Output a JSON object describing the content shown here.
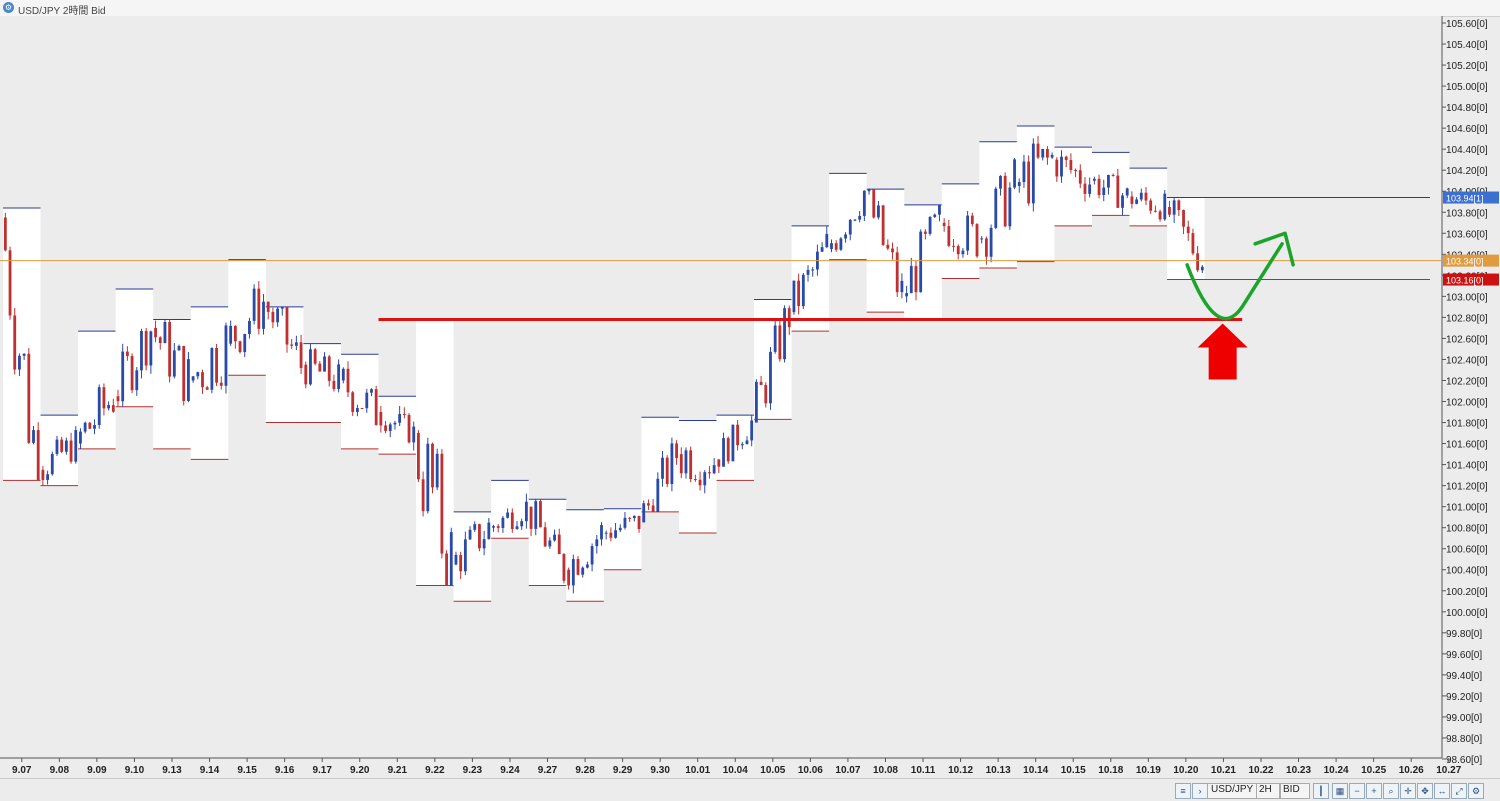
{
  "window": {
    "title": "USD/JPY 2時間 Bid"
  },
  "colors": {
    "bg": "#ececec",
    "up": "#2a4aa8",
    "down": "#c03030",
    "box_top": "#2a3a9a",
    "box_bottom": "#b03030",
    "support": "#dd1111",
    "arrow": "#1aa52a",
    "orange_line": "#e09a40"
  },
  "price_scale": {
    "labels": [
      "105.60[0]",
      "105.40[0]",
      "105.20[0]",
      "105.00[0]",
      "104.80[0]",
      "104.60[0]",
      "104.40[0]",
      "104.20[0]",
      "104.00[0]",
      "103.80[0]",
      "103.60[0]",
      "103.40[0]",
      "103.20[0]",
      "103.00[0]",
      "102.80[0]",
      "102.60[0]",
      "102.40[0]",
      "102.20[0]",
      "102.00[0]",
      "101.80[0]",
      "101.60[0]",
      "101.40[0]",
      "101.20[0]",
      "101.00[0]",
      "100.80[0]",
      "100.60[0]",
      "100.40[0]",
      "100.20[0]",
      "100.00[0]",
      "99.80[0]",
      "99.60[0]",
      "99.40[0]",
      "99.20[0]",
      "99.00[0]",
      "98.80[0]",
      "98.60[0]"
    ],
    "markers": [
      {
        "label": "103.94[1]",
        "price": 103.94,
        "color": "#3b6fd0"
      },
      {
        "label": "103.34[0]",
        "price": 103.34,
        "color": "#e09a40"
      },
      {
        "label": "103.16[0]",
        "price": 103.16,
        "color": "#cc1111"
      }
    ]
  },
  "chart_data": {
    "type": "candlestick",
    "title": "USD/JPY 2時間 Bid",
    "x_labels": [
      "9.07",
      "9.08",
      "9.09",
      "9.10",
      "9.13",
      "9.14",
      "9.15",
      "9.16",
      "9.17",
      "9.20",
      "9.21",
      "9.22",
      "9.23",
      "9.24",
      "9.27",
      "9.28",
      "9.29",
      "9.30",
      "10.01",
      "10.04",
      "10.05",
      "10.06",
      "10.07",
      "10.08",
      "10.11",
      "10.12",
      "10.13",
      "10.14",
      "10.15",
      "10.18",
      "10.19",
      "10.20",
      "10.21",
      "10.22",
      "10.23",
      "10.24",
      "10.25",
      "10.26",
      "10.27"
    ],
    "ylim": [
      98.6,
      105.6
    ],
    "grid": false,
    "daily_ranges": [
      {
        "date": "9.07",
        "open": 103.75,
        "high": 103.84,
        "low": 101.25,
        "close": 101.35
      },
      {
        "date": "9.08",
        "open": 101.35,
        "high": 101.87,
        "low": 101.2,
        "close": 101.6
      },
      {
        "date": "9.09",
        "open": 101.6,
        "high": 102.67,
        "low": 101.55,
        "close": 102.05
      },
      {
        "date": "9.10",
        "open": 102.05,
        "high": 103.07,
        "low": 101.95,
        "close": 102.7
      },
      {
        "date": "9.13",
        "open": 102.7,
        "high": 102.78,
        "low": 101.55,
        "close": 102.2
      },
      {
        "date": "9.14",
        "open": 102.2,
        "high": 102.9,
        "low": 101.45,
        "close": 102.55
      },
      {
        "date": "9.15",
        "open": 102.55,
        "high": 103.35,
        "low": 102.25,
        "close": 102.95
      },
      {
        "date": "9.16",
        "open": 102.95,
        "high": 102.9,
        "low": 101.8,
        "close": 102.35
      },
      {
        "date": "9.17",
        "open": 102.35,
        "high": 102.55,
        "low": 101.8,
        "close": 102.2
      },
      {
        "date": "9.20",
        "open": 102.2,
        "high": 102.45,
        "low": 101.55,
        "close": 101.9
      },
      {
        "date": "9.21",
        "open": 101.9,
        "high": 102.05,
        "low": 101.5,
        "close": 101.7
      },
      {
        "date": "9.22",
        "open": 101.7,
        "high": 102.78,
        "low": 100.25,
        "close": 100.45
      },
      {
        "date": "9.23",
        "open": 100.45,
        "high": 100.95,
        "low": 100.1,
        "close": 100.8
      },
      {
        "date": "9.24",
        "open": 100.8,
        "high": 101.25,
        "low": 100.7,
        "close": 101.0
      },
      {
        "date": "9.27",
        "open": 101.0,
        "high": 101.07,
        "low": 100.25,
        "close": 100.4
      },
      {
        "date": "9.28",
        "open": 100.4,
        "high": 100.97,
        "low": 100.1,
        "close": 100.75
      },
      {
        "date": "9.29",
        "open": 100.75,
        "high": 100.98,
        "low": 100.4,
        "close": 100.85
      },
      {
        "date": "9.30",
        "open": 100.85,
        "high": 101.85,
        "low": 100.95,
        "close": 101.5
      },
      {
        "date": "10.01",
        "open": 101.5,
        "high": 101.82,
        "low": 100.75,
        "close": 101.45
      },
      {
        "date": "10.04",
        "open": 101.45,
        "high": 101.87,
        "low": 101.25,
        "close": 101.8
      },
      {
        "date": "10.05",
        "open": 101.8,
        "high": 102.97,
        "low": 101.83,
        "close": 102.85
      },
      {
        "date": "10.06",
        "open": 102.85,
        "high": 103.67,
        "low": 102.67,
        "close": 103.45
      },
      {
        "date": "10.07",
        "open": 103.45,
        "high": 104.17,
        "low": 103.35,
        "close": 104.0
      },
      {
        "date": "10.08",
        "open": 104.0,
        "high": 104.02,
        "low": 102.85,
        "close": 103.0
      },
      {
        "date": "10.11",
        "open": 103.0,
        "high": 103.87,
        "low": 102.77,
        "close": 103.7
      },
      {
        "date": "10.12",
        "open": 103.7,
        "high": 104.07,
        "low": 103.17,
        "close": 103.55
      },
      {
        "date": "10.13",
        "open": 103.55,
        "high": 104.47,
        "low": 103.27,
        "close": 104.05
      },
      {
        "date": "10.14",
        "open": 104.05,
        "high": 104.62,
        "low": 103.33,
        "close": 104.3
      },
      {
        "date": "10.15",
        "open": 104.3,
        "high": 104.42,
        "low": 103.67,
        "close": 104.1
      },
      {
        "date": "10.18",
        "open": 104.1,
        "high": 104.37,
        "low": 103.77,
        "close": 103.95
      },
      {
        "date": "10.19",
        "open": 103.95,
        "high": 104.22,
        "low": 103.67,
        "close": 103.85
      },
      {
        "date": "10.20",
        "open": 103.85,
        "high": 103.94,
        "low": 103.16,
        "close": 103.34
      }
    ],
    "annotations": [
      {
        "type": "horizontal-line",
        "price": 102.78,
        "from": "9.21",
        "to": "10.22",
        "color": "#dd1111"
      },
      {
        "type": "horizontal-line",
        "price": 103.94,
        "from": "10.20",
        "to": "10.27",
        "color": "#2a3a9a"
      },
      {
        "type": "horizontal-line",
        "price": 103.34,
        "color": "#e09a40"
      },
      {
        "type": "horizontal-line",
        "price": 103.16,
        "from": "10.20",
        "to": "10.27",
        "color": "#b03030"
      },
      {
        "type": "arrow-up",
        "at": "10.21",
        "color": "#ee0000"
      },
      {
        "type": "curved-arrow",
        "color": "#1aa52a"
      }
    ]
  },
  "statusbar": {
    "symbol": "USD/JPY",
    "timeframe": "2H",
    "price_type": "BID"
  }
}
